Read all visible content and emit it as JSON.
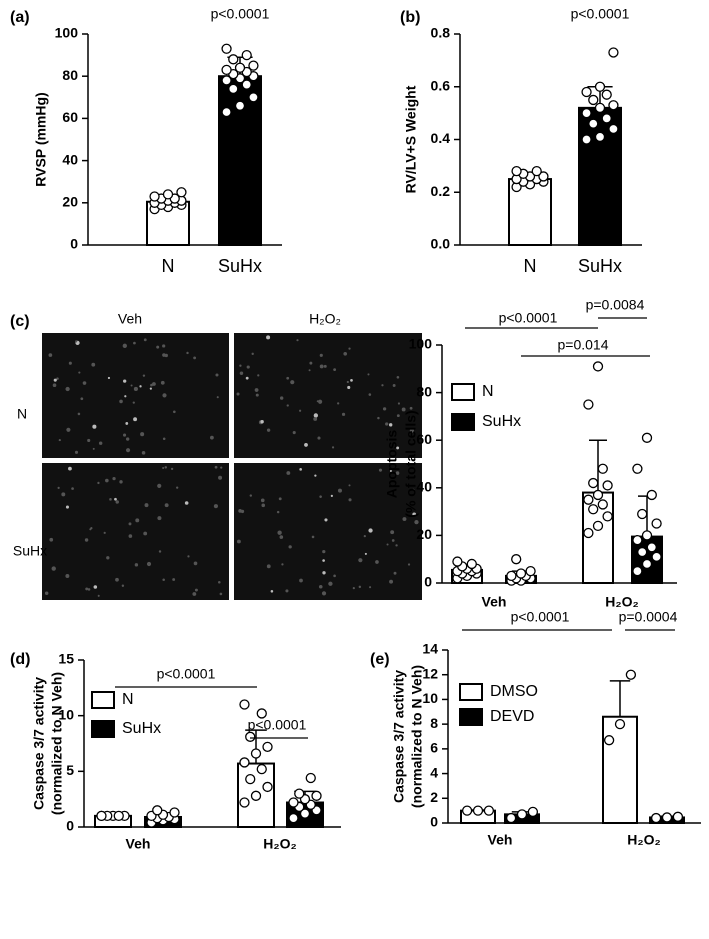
{
  "chart_data": [
    {
      "type": "bar",
      "panel": "(a)",
      "ylabel": [
        "RVSP (mmHg)"
      ],
      "annotations": [
        "p<0.0001"
      ],
      "categories": [
        "N",
        "SuHx"
      ],
      "values": [
        20.5,
        80
      ],
      "errors": [
        3,
        9
      ],
      "colors": [
        "#ffffff",
        "#000000"
      ],
      "points": [
        [
          17,
          18,
          19,
          19,
          20,
          20,
          21,
          21,
          22,
          22,
          23,
          24,
          25
        ],
        [
          63,
          66,
          70,
          74,
          76,
          78,
          79,
          80,
          81,
          82,
          83,
          84,
          85,
          88,
          90,
          93
        ]
      ],
      "ylim": [
        0,
        100
      ],
      "yticks": [
        0,
        20,
        40,
        60,
        80,
        100
      ]
    },
    {
      "type": "bar",
      "panel": "(b)",
      "ylabel": [
        "RV/LV+S Weight"
      ],
      "annotations": [
        "p<0.0001"
      ],
      "categories": [
        "N",
        "SuHx"
      ],
      "values": [
        0.25,
        0.52
      ],
      "errors": [
        0.02,
        0.08
      ],
      "colors": [
        "#ffffff",
        "#000000"
      ],
      "points": [
        [
          0.22,
          0.23,
          0.24,
          0.24,
          0.25,
          0.25,
          0.26,
          0.26,
          0.27,
          0.28,
          0.28
        ],
        [
          0.4,
          0.41,
          0.44,
          0.46,
          0.48,
          0.5,
          0.52,
          0.53,
          0.55,
          0.57,
          0.58,
          0.6,
          0.73
        ]
      ],
      "ylim": [
        0,
        0.8
      ],
      "yticks": [
        {
          "value": 0,
          "label": "0.0"
        },
        0.2,
        0.4,
        0.6,
        0.8
      ]
    },
    {
      "type": "grouped_bar",
      "panel": "(c)",
      "ylabel": [
        "Apoptosis",
        "(% of total cells)"
      ],
      "image_labels": {
        "columns": [
          "Veh",
          "H₂O₂"
        ],
        "rows": [
          "N",
          "SuHx"
        ]
      },
      "annotations": [
        "p<0.0001",
        "p=0.0084",
        "p=0.014"
      ],
      "categories": [
        "Veh",
        "H₂O₂"
      ],
      "series": [
        {
          "name": "N",
          "color": "#ffffff",
          "values": [
            5.5,
            38
          ],
          "errors": [
            2,
            22
          ],
          "points": [
            [
              2,
              3,
              4,
              4,
              5,
              5,
              6,
              6,
              7,
              8,
              9
            ],
            [
              21,
              24,
              28,
              31,
              33,
              35,
              37,
              41,
              42,
              48,
              75,
              91
            ]
          ]
        },
        {
          "name": "SuHx",
          "color": "#000000",
          "values": [
            3,
            19.5
          ],
          "errors": [
            2,
            17
          ],
          "points": [
            [
              1,
              1,
              2,
              2,
              3,
              3,
              4,
              5,
              10
            ],
            [
              5,
              8,
              11,
              13,
              15,
              18,
              20,
              25,
              29,
              37,
              48,
              61
            ]
          ]
        }
      ],
      "ylim": [
        0,
        100
      ],
      "yticks": [
        0,
        20,
        40,
        60,
        80,
        100
      ]
    },
    {
      "type": "grouped_bar",
      "panel": "(d)",
      "ylabel": [
        "Caspase 3/7 activity",
        "(normalized to N Veh)"
      ],
      "annotations": [
        "p<0.0001",
        "p<0.0001"
      ],
      "categories": [
        "Veh",
        "H₂O₂"
      ],
      "series": [
        {
          "name": "N",
          "color": "#ffffff",
          "values": [
            1.0,
            5.7
          ],
          "errors": [
            0.05,
            3.0
          ],
          "points": [
            [
              1,
              1,
              1,
              1,
              1,
              1
            ],
            [
              2.2,
              2.8,
              3.6,
              4.3,
              5.2,
              5.8,
              6.6,
              7.2,
              8.1,
              10.2,
              11.0
            ]
          ]
        },
        {
          "name": "SuHx",
          "color": "#000000",
          "values": [
            0.9,
            2.2
          ],
          "errors": [
            0.3,
            1.0
          ],
          "points": [
            [
              0.4,
              0.6,
              0.7,
              0.8,
              0.9,
              1.0,
              1.1,
              1.3,
              1.5
            ],
            [
              0.8,
              1.2,
              1.5,
              1.8,
              2.0,
              2.2,
              2.5,
              2.8,
              3.0,
              4.4
            ]
          ]
        }
      ],
      "ylim": [
        0,
        15
      ],
      "yticks": [
        0,
        5,
        10,
        15
      ]
    },
    {
      "type": "grouped_bar",
      "panel": "(e)",
      "ylabel": [
        "Caspase 3/7 activity",
        "(normalized to N Veh)"
      ],
      "annotations": [
        "p<0.0001",
        "p=0.0004"
      ],
      "categories": [
        "Veh",
        "H₂O₂"
      ],
      "series": [
        {
          "name": "DMSO",
          "color": "#ffffff",
          "values": [
            1.0,
            8.6
          ],
          "errors": [
            0.05,
            2.9
          ],
          "points": [
            [
              1,
              1,
              1
            ],
            [
              6.7,
              8,
              12
            ]
          ]
        },
        {
          "name": "DEVD",
          "color": "#000000",
          "values": [
            0.7,
            0.45
          ],
          "errors": [
            0.2,
            0.1
          ],
          "points": [
            [
              0.4,
              0.7,
              0.9
            ],
            [
              0.4,
              0.45,
              0.5
            ]
          ]
        }
      ],
      "ylim": [
        0,
        14
      ],
      "yticks": [
        0,
        2,
        4,
        6,
        8,
        10,
        12,
        14
      ]
    }
  ]
}
